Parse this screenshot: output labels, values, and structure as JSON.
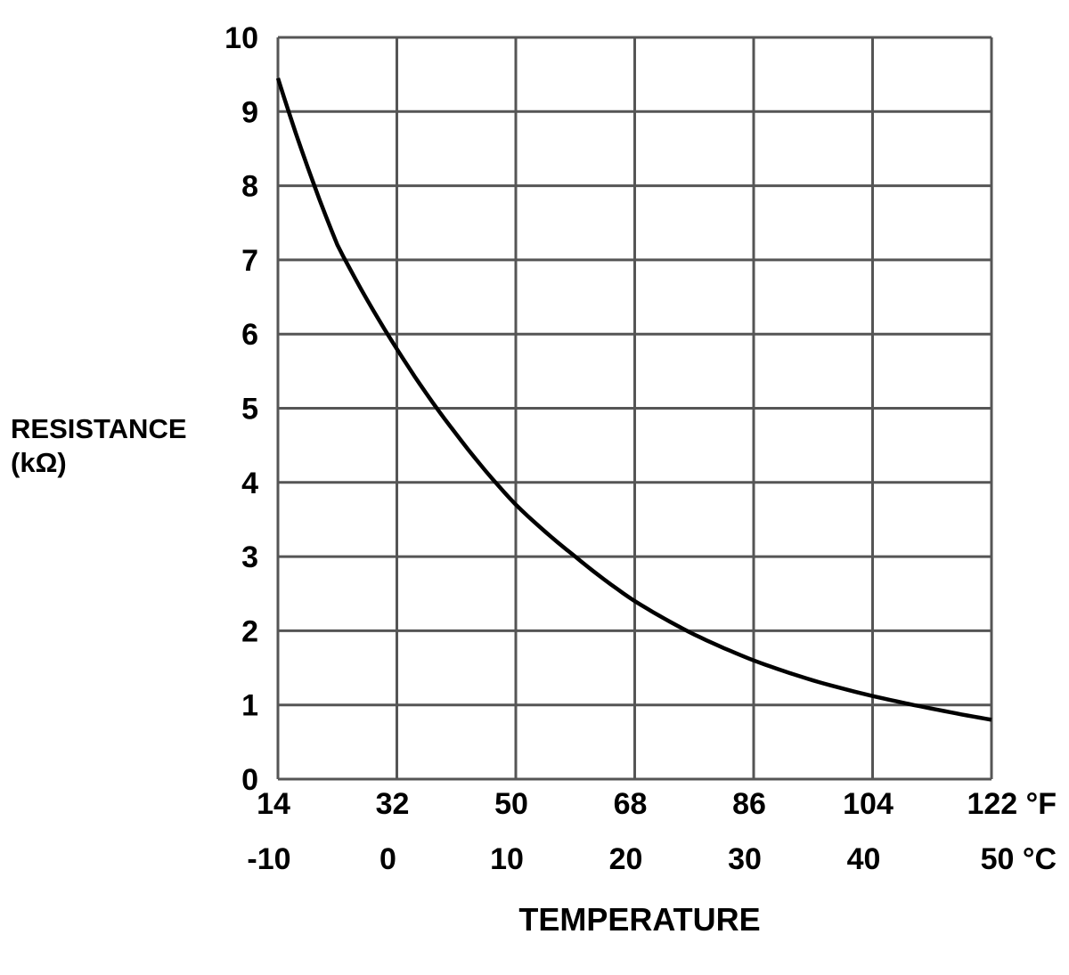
{
  "chart_data": {
    "type": "line",
    "title": "",
    "ylabel_line1": "RESISTANCE",
    "ylabel_line2": "(kΩ)",
    "xlabel": "TEMPERATURE",
    "x_unit_primary": "°C",
    "x_unit_secondary": "°F",
    "xlim": [
      -10,
      50
    ],
    "ylim": [
      0,
      10
    ],
    "grid": true,
    "y_ticks": [
      "0",
      "1",
      "2",
      "3",
      "4",
      "5",
      "6",
      "7",
      "8",
      "9",
      "10"
    ],
    "x_ticks_celsius": [
      "-10",
      "0",
      "10",
      "20",
      "30",
      "40",
      "50 °C"
    ],
    "x_ticks_fahrenheit": [
      "14",
      "32",
      "50",
      "68",
      "86",
      "104",
      "122 °F"
    ],
    "series": [
      {
        "x": [
          -10,
          -5,
          0,
          5,
          10,
          15,
          20,
          25,
          30,
          35,
          40,
          45,
          50
        ],
        "y": [
          9.45,
          7.2,
          5.8,
          4.65,
          3.7,
          3.0,
          2.4,
          1.95,
          1.6,
          1.33,
          1.12,
          0.95,
          0.8
        ],
        "color": "#000000"
      }
    ],
    "grid_color": "#555555"
  }
}
